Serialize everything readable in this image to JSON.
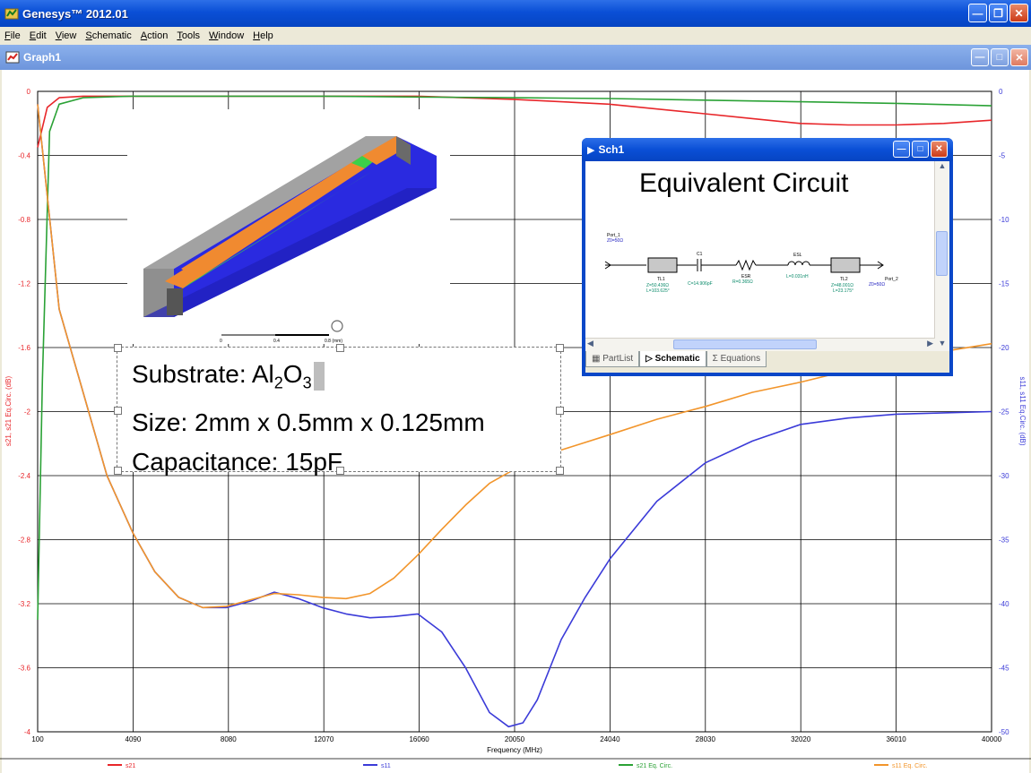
{
  "app": {
    "title": "Genesys™ 2012.01",
    "brand_color": "#0a4fd6"
  },
  "menu": {
    "items": [
      {
        "u": "F",
        "rest": "ile"
      },
      {
        "u": "E",
        "rest": "dit"
      },
      {
        "u": "V",
        "rest": "iew"
      },
      {
        "u": "S",
        "rest": "chematic"
      },
      {
        "u": "A",
        "rest": "ction"
      },
      {
        "u": "T",
        "rest": "ools"
      },
      {
        "u": "W",
        "rest": "indow"
      },
      {
        "u": "H",
        "rest": "elp"
      }
    ]
  },
  "graph_window": {
    "title": "Graph1"
  },
  "annotation": {
    "substrate_label": "Substrate: Al",
    "substrate_sub1": "2",
    "substrate_mid": "O",
    "substrate_sub2": "3",
    "size": "Size: 2mm x 0.5mm x 0.125mm",
    "capacitance": "Capacitance: 15pF"
  },
  "model_image": {
    "scale_labels": [
      "0",
      "0.4",
      "0.8 (mm)"
    ]
  },
  "sch_window": {
    "title": "Sch1",
    "heading": "Equivalent Circuit",
    "tabs": [
      "PartList",
      "Schematic",
      "Equations"
    ],
    "components": {
      "port1": {
        "name": "Port_1",
        "value": "Z0=50Ω"
      },
      "tl1": {
        "name": "TL1",
        "z": "Z=50.436Ω",
        "l": "L=103.625°"
      },
      "c1": {
        "name": "C1",
        "value": "C=14.906pF"
      },
      "esr": {
        "name": "ESR",
        "value": "R=0.365Ω"
      },
      "esl": {
        "name": "ESL",
        "value": "L=0.031nH"
      },
      "tl2": {
        "name": "TL2",
        "z": "Z=48.001Ω",
        "l": "L=23.175°"
      },
      "port2": {
        "name": "Port_2",
        "value": "Z0=50Ω"
      }
    }
  },
  "chart_data": {
    "type": "line",
    "xlabel": "Frequency (MHz)",
    "ylabel_left": "s21, s21 Eq.Circ. (dB)",
    "ylabel_right": "s11, s11 Eq.Circ. (dB)",
    "xlim": [
      100,
      40000
    ],
    "ylim_left": [
      -4,
      0
    ],
    "ylim_right": [
      -50,
      0
    ],
    "x_ticks": [
      100,
      4090,
      8080,
      12070,
      16060,
      20050,
      24040,
      28030,
      32020,
      36010,
      40000
    ],
    "y_ticks_left": [
      0,
      -0.4,
      -0.8,
      -1.2,
      -1.6,
      -2,
      -2.4,
      -2.8,
      -3.2,
      -3.6,
      -4
    ],
    "y_ticks_right": [
      0,
      -5,
      -10,
      -15,
      -20,
      -25,
      -30,
      -35,
      -40,
      -45,
      -50
    ],
    "grid": true,
    "legend_position": "bottom",
    "series": [
      {
        "name": "s21",
        "axis": "left",
        "color": "#e8262a",
        "x": [
          100,
          500,
          1000,
          2000,
          4000,
          8000,
          12000,
          16000,
          20000,
          24000,
          28000,
          30000,
          32000,
          34000,
          36000,
          38000,
          40000
        ],
        "y": [
          -0.35,
          -0.1,
          -0.04,
          -0.03,
          -0.03,
          -0.03,
          -0.03,
          -0.03,
          -0.05,
          -0.08,
          -0.14,
          -0.17,
          -0.2,
          -0.21,
          -0.21,
          -0.2,
          -0.18
        ]
      },
      {
        "name": "s11",
        "axis": "right",
        "color": "#3b3bd8",
        "x": [
          100,
          1000,
          2000,
          3000,
          4090,
          5000,
          6000,
          7000,
          8000,
          9000,
          10000,
          11000,
          12000,
          13000,
          14000,
          15000,
          16000,
          17000,
          18000,
          19000,
          19800,
          20400,
          21000,
          22000,
          23000,
          24040,
          26000,
          28030,
          30000,
          32020,
          34000,
          36010,
          38000,
          40000
        ],
        "y": [
          -1,
          -17,
          -23.5,
          -30,
          -34.5,
          -37.5,
          -39.5,
          -40.3,
          -40.3,
          -39.8,
          -39.1,
          -39.6,
          -40.3,
          -40.8,
          -41.1,
          -41,
          -40.8,
          -42.2,
          -45,
          -48.5,
          -49.6,
          -49.3,
          -47.5,
          -42.8,
          -39.5,
          -36.5,
          -32,
          -29,
          -27.3,
          -26,
          -25.5,
          -25.2,
          -25.1,
          -25
        ]
      },
      {
        "name": "s21 Eq. Circ.",
        "axis": "left",
        "color": "#2ba236",
        "x": [
          100,
          300,
          600,
          1000,
          2000,
          4000,
          8000,
          12000,
          16000,
          20000,
          24000,
          28000,
          32000,
          36000,
          40000
        ],
        "y": [
          -3.3,
          -1.8,
          -0.25,
          -0.08,
          -0.04,
          -0.03,
          -0.03,
          -0.03,
          -0.035,
          -0.04,
          -0.045,
          -0.055,
          -0.065,
          -0.075,
          -0.09
        ]
      },
      {
        "name": "s11 Eq. Circ.",
        "axis": "right",
        "color": "#f2952b",
        "x": [
          100,
          1000,
          2000,
          3000,
          4090,
          5000,
          6000,
          7000,
          8000,
          9000,
          10000,
          11000,
          12000,
          13000,
          14000,
          15000,
          16000,
          17000,
          18000,
          19000,
          20050,
          22000,
          24040,
          26000,
          28030,
          30000,
          32020,
          34000,
          36010,
          38000,
          40000
        ],
        "y": [
          -1,
          -17,
          -23.5,
          -30,
          -34.5,
          -37.5,
          -39.5,
          -40.3,
          -40.2,
          -39.7,
          -39.2,
          -39.3,
          -39.5,
          -39.6,
          -39.2,
          -38,
          -36.2,
          -34.2,
          -32.3,
          -30.6,
          -29.5,
          -28,
          -26.8,
          -25.6,
          -24.6,
          -23.5,
          -22.7,
          -21.8,
          -21,
          -20.3,
          -19.7
        ]
      }
    ]
  }
}
